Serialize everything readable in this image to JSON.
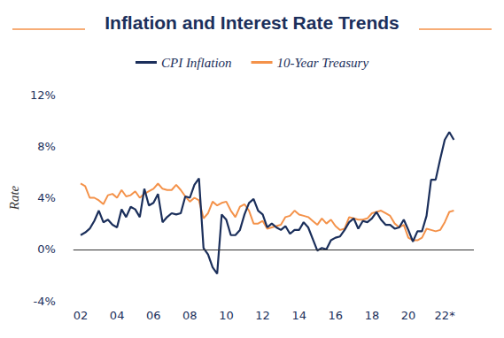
{
  "chart_data": {
    "type": "line",
    "title": "Inflation and Interest Rate Trends",
    "y_label": "Rate",
    "legend": "top",
    "grid": false,
    "x": [
      2002,
      2002.25,
      2002.5,
      2002.75,
      2003,
      2003.25,
      2003.5,
      2003.75,
      2004,
      2004.25,
      2004.5,
      2004.75,
      2005,
      2005.25,
      2005.5,
      2005.75,
      2006,
      2006.25,
      2006.5,
      2006.75,
      2007,
      2007.25,
      2007.5,
      2007.75,
      2008,
      2008.25,
      2008.5,
      2008.75,
      2009,
      2009.25,
      2009.5,
      2009.75,
      2010,
      2010.25,
      2010.5,
      2010.75,
      2011,
      2011.25,
      2011.5,
      2011.75,
      2012,
      2012.25,
      2012.5,
      2012.75,
      2013,
      2013.25,
      2013.5,
      2013.75,
      2014,
      2014.25,
      2014.5,
      2014.75,
      2015,
      2015.25,
      2015.5,
      2015.75,
      2016,
      2016.25,
      2016.5,
      2016.75,
      2017,
      2017.25,
      2017.5,
      2017.75,
      2018,
      2018.25,
      2018.5,
      2018.75,
      2019,
      2019.25,
      2019.5,
      2019.75,
      2020,
      2020.25,
      2020.5,
      2020.75,
      2021,
      2021.25,
      2021.5,
      2021.75,
      2022,
      2022.25,
      2022.5
    ],
    "series": [
      {
        "name": "CPI Inflation",
        "color": "#1b2f5b",
        "values": [
          1.1,
          1.3,
          1.6,
          2.2,
          3.0,
          2.1,
          2.3,
          1.9,
          1.7,
          3.1,
          2.5,
          3.3,
          3.1,
          2.5,
          4.7,
          3.4,
          3.6,
          4.3,
          2.1,
          2.5,
          2.8,
          2.7,
          2.8,
          4.1,
          4.0,
          5.0,
          5.5,
          0.1,
          -0.4,
          -1.4,
          -1.9,
          2.7,
          2.3,
          1.1,
          1.1,
          1.5,
          2.7,
          3.6,
          3.9,
          3.0,
          2.7,
          1.7,
          2.0,
          1.7,
          1.5,
          1.8,
          1.2,
          1.5,
          1.5,
          2.1,
          1.7,
          0.8,
          -0.1,
          0.1,
          0.0,
          0.7,
          0.9,
          1.0,
          1.5,
          2.1,
          2.4,
          1.6,
          2.2,
          2.1,
          2.4,
          2.9,
          2.3,
          1.9,
          1.9,
          1.6,
          1.7,
          2.3,
          1.5,
          0.6,
          1.4,
          1.4,
          2.6,
          5.4,
          5.4,
          7.0,
          8.5,
          9.1,
          8.5
        ]
      },
      {
        "name": "10-Year Treasury",
        "color": "#f4924a",
        "values": [
          5.1,
          4.9,
          4.0,
          4.0,
          3.8,
          3.5,
          4.2,
          4.3,
          4.0,
          4.6,
          4.1,
          4.2,
          4.5,
          4.0,
          4.3,
          4.5,
          4.7,
          5.1,
          4.7,
          4.6,
          4.6,
          5.0,
          4.6,
          4.1,
          3.7,
          4.0,
          3.8,
          2.4,
          2.8,
          3.7,
          3.4,
          3.6,
          3.7,
          3.0,
          2.5,
          3.3,
          3.5,
          3.0,
          2.0,
          2.0,
          2.2,
          1.6,
          1.7,
          1.8,
          1.9,
          2.5,
          2.6,
          3.0,
          2.7,
          2.6,
          2.5,
          2.2,
          1.9,
          2.4,
          2.0,
          2.3,
          1.8,
          1.5,
          1.6,
          2.5,
          2.4,
          2.3,
          2.3,
          2.4,
          2.8,
          2.9,
          3.0,
          2.8,
          2.6,
          2.0,
          1.7,
          1.9,
          0.9,
          0.7,
          0.7,
          0.9,
          1.6,
          1.5,
          1.4,
          1.5,
          2.1,
          2.9,
          3.0
        ]
      }
    ],
    "xlim": [
      2001.6,
      2023.6
    ],
    "xticks": [
      {
        "value": 2002,
        "label": "02"
      },
      {
        "value": 2004,
        "label": "04"
      },
      {
        "value": 2006,
        "label": "06"
      },
      {
        "value": 2008,
        "label": "08"
      },
      {
        "value": 2010,
        "label": "10"
      },
      {
        "value": 2012,
        "label": "12"
      },
      {
        "value": 2014,
        "label": "14"
      },
      {
        "value": 2016,
        "label": "16"
      },
      {
        "value": 2018,
        "label": "18"
      },
      {
        "value": 2020,
        "label": "20"
      },
      {
        "value": 2022,
        "label": "22*"
      }
    ],
    "ylim": [
      -4,
      12
    ],
    "yticks": [
      {
        "value": -4,
        "label": "-4%"
      },
      {
        "value": 0,
        "label": "0%"
      },
      {
        "value": 4,
        "label": "4%"
      },
      {
        "value": 8,
        "label": "8%"
      },
      {
        "value": 12,
        "label": "12%"
      }
    ]
  }
}
